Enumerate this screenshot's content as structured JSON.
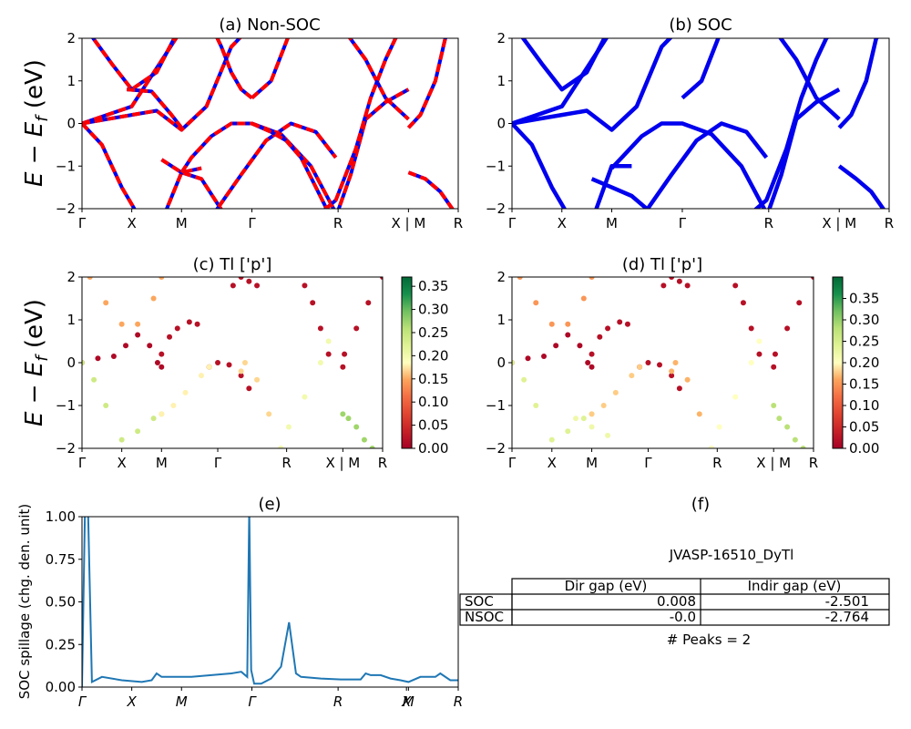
{
  "figure": {
    "suptitle": "JVASP-16510_DyTl",
    "colors": {
      "soc": "#0000ee",
      "nsoc_dash": "#ff0000",
      "spillage": "#1f77b4"
    }
  },
  "chart_data": [
    {
      "id": "a",
      "type": "line",
      "title": "(a) Non-SOC",
      "ylabel": "E − E_f (eV)",
      "ylim": [
        -2,
        2
      ],
      "yticks": [
        "2",
        "1",
        "0",
        "−1",
        "−2"
      ],
      "kpath": [
        "Γ",
        "X",
        "M",
        "Γ",
        "R",
        "X | M",
        "R"
      ],
      "kpos": [
        0,
        0.5,
        1,
        1.707,
        2.573,
        3.28,
        3.78
      ],
      "style": "blue-solid-with-red-dashes",
      "series": [
        {
          "x": [
            0,
            0.5,
            1
          ],
          "y": [
            0,
            0.4,
            2.2
          ]
        },
        {
          "x": [
            0,
            0.25,
            0.5,
            0.75,
            1.0,
            1.25,
            1.5,
            1.707
          ],
          "y": [
            0.0,
            0.1,
            0.2,
            0.3,
            -0.15,
            0.4,
            1.8,
            2.3
          ]
        },
        {
          "x": [
            0.05,
            0.3,
            0.5,
            0.75,
            0.97
          ],
          "y": [
            2.2,
            1.4,
            0.8,
            1.2,
            2.2
          ]
        },
        {
          "x": [
            0.45,
            0.7,
            0.9,
            1.0
          ],
          "y": [
            0.8,
            0.75,
            0.2,
            -0.1
          ]
        },
        {
          "x": [
            0,
            0.2,
            0.4,
            0.6,
            0.8,
            1.0,
            1.2
          ],
          "y": [
            0,
            -0.5,
            -1.5,
            -2.3,
            -2.3,
            -1.15,
            -1.05
          ]
        },
        {
          "x": [
            0.8,
            1.0,
            1.2,
            1.45
          ],
          "y": [
            -0.85,
            -1.15,
            -1.3,
            -2.2
          ]
        },
        {
          "x": [
            1.0,
            1.1,
            1.3,
            1.5,
            1.707,
            2.0,
            2.3,
            2.573
          ],
          "y": [
            -1.15,
            -0.8,
            -0.3,
            0.0,
            0.0,
            -0.25,
            -1.0,
            -2.2
          ]
        },
        {
          "x": [
            1.3,
            1.4,
            1.5,
            1.6,
            1.707
          ],
          "y": [
            2.3,
            1.8,
            1.2,
            0.8,
            0.6
          ]
        },
        {
          "x": [
            1.707,
            1.9,
            2.1,
            2.35,
            2.6,
            2.85,
            3.05,
            3.28
          ],
          "y": [
            0.6,
            1.0,
            2.2,
            2.3,
            2.3,
            1.5,
            0.6,
            0.1
          ]
        },
        {
          "x": [
            1.3,
            1.6,
            1.85,
            2.1,
            2.35,
            2.55
          ],
          "y": [
            -2.2,
            -1.2,
            -0.4,
            0.0,
            -0.2,
            -0.8
          ]
        },
        {
          "x": [
            1.707,
            1.9,
            2.05,
            2.2,
            2.35,
            2.5
          ],
          "y": [
            0.0,
            -0.2,
            -0.4,
            -0.8,
            -1.5,
            -2.2
          ]
        },
        {
          "x": [
            2.55,
            2.7,
            2.85,
            3.05,
            3.28
          ],
          "y": [
            -2.2,
            -1.2,
            0.1,
            0.5,
            0.8
          ]
        },
        {
          "x": [
            2.35,
            2.55,
            2.75,
            2.9,
            3.05,
            3.15,
            3.28
          ],
          "y": [
            -2.2,
            -1.8,
            -0.6,
            0.6,
            1.5,
            2.0,
            2.3
          ]
        },
        {
          "x": [
            3.28,
            3.4,
            3.55,
            3.65,
            3.78
          ],
          "y": [
            -0.1,
            0.2,
            1.0,
            2.0,
            2.3
          ]
        },
        {
          "x": [
            3.28,
            3.45,
            3.6,
            3.78
          ],
          "y": [
            -1.15,
            -1.3,
            -1.6,
            -2.2
          ]
        }
      ]
    },
    {
      "id": "b",
      "type": "line",
      "title": "(b) SOC",
      "ylim": [
        -2,
        2
      ],
      "yticks": [
        "2",
        "1",
        "0",
        "−1",
        "−2"
      ],
      "kpath": [
        "Γ",
        "X",
        "M",
        "Γ",
        "R",
        "X | M",
        "R"
      ],
      "kpos": [
        0,
        0.5,
        1,
        1.707,
        2.573,
        3.28,
        3.78
      ],
      "style": "blue-thick",
      "series": [
        {
          "x": [
            0,
            0.5,
            1
          ],
          "y": [
            0,
            0.4,
            2.2
          ]
        },
        {
          "x": [
            0,
            0.25,
            0.5,
            0.75,
            1.0,
            1.25,
            1.5,
            1.707
          ],
          "y": [
            0.0,
            0.1,
            0.2,
            0.3,
            -0.15,
            0.4,
            1.8,
            2.3
          ]
        },
        {
          "x": [
            0.05,
            0.3,
            0.5,
            0.75,
            0.97
          ],
          "y": [
            2.2,
            1.4,
            0.8,
            1.2,
            2.2
          ]
        },
        {
          "x": [
            0,
            0.2,
            0.4,
            0.6,
            0.8,
            1.0,
            1.2
          ],
          "y": [
            0,
            -0.5,
            -1.5,
            -2.3,
            -2.3,
            -1.0,
            -1.0
          ]
        },
        {
          "x": [
            0.8,
            1.0,
            1.2,
            1.45
          ],
          "y": [
            -1.3,
            -1.5,
            -1.7,
            -2.2
          ]
        },
        {
          "x": [
            1.0,
            1.1,
            1.3,
            1.5,
            1.707,
            2.0,
            2.3,
            2.573
          ],
          "y": [
            -1.05,
            -0.8,
            -0.3,
            0.0,
            0.0,
            -0.25,
            -1.0,
            -2.2
          ]
        },
        {
          "x": [
            1.707,
            1.9,
            2.1,
            2.35,
            2.6,
            2.85,
            3.05,
            3.28
          ],
          "y": [
            0.6,
            1.0,
            2.2,
            2.3,
            2.3,
            1.5,
            0.6,
            0.1
          ]
        },
        {
          "x": [
            1.3,
            1.6,
            1.85,
            2.1,
            2.35,
            2.55
          ],
          "y": [
            -2.2,
            -1.2,
            -0.4,
            0.0,
            -0.2,
            -0.8
          ]
        },
        {
          "x": [
            2.55,
            2.7,
            2.85,
            3.05,
            3.28
          ],
          "y": [
            -2.2,
            -1.2,
            0.1,
            0.5,
            0.8
          ]
        },
        {
          "x": [
            2.35,
            2.55,
            2.75,
            2.9,
            3.05,
            3.15,
            3.28
          ],
          "y": [
            -2.2,
            -1.8,
            -0.6,
            0.6,
            1.5,
            2.0,
            2.3
          ]
        },
        {
          "x": [
            3.28,
            3.4,
            3.55,
            3.65,
            3.78
          ],
          "y": [
            -0.1,
            0.2,
            1.0,
            2.0,
            2.3
          ]
        },
        {
          "x": [
            3.28,
            3.45,
            3.6,
            3.78
          ],
          "y": [
            -1.0,
            -1.3,
            -1.6,
            -2.2
          ]
        }
      ]
    },
    {
      "id": "c",
      "type": "scatter",
      "title": "(c)  Tl ['p']",
      "ylabel": "E − E_f (eV)",
      "ylim": [
        -2,
        2
      ],
      "yticks": [
        "2",
        "1",
        "0",
        "−1",
        "−2"
      ],
      "kpath": [
        "Γ",
        "X",
        "M",
        "Γ",
        "R",
        "X | M",
        "R"
      ],
      "kpos": [
        0,
        0.5,
        1,
        1.707,
        2.573,
        3.28,
        3.78
      ],
      "colorbar": {
        "min": 0.0,
        "max": 0.37,
        "ticks": [
          "0.35",
          "0.30",
          "0.25",
          "0.20",
          "0.15",
          "0.10",
          "0.05",
          "0.00"
        ],
        "tick_values": [
          0.35,
          0.3,
          0.25,
          0.2,
          0.15,
          0.1,
          0.05,
          0.0
        ]
      },
      "points": [
        {
          "x": [
            0.0,
            0.2,
            0.4,
            0.55,
            0.7,
            0.85,
            0.95,
            1.0
          ],
          "y": [
            0.0,
            0.1,
            0.15,
            0.4,
            0.65,
            0.4,
            0.0,
            -0.1
          ],
          "c": 0.01
        },
        {
          "x": [
            1.0,
            1.1,
            1.2,
            1.35,
            1.45
          ],
          "y": [
            0.2,
            0.6,
            0.8,
            0.95,
            0.9
          ],
          "c": 0.02
        },
        {
          "x": [
            1.6,
            1.707,
            1.85,
            2.0,
            2.1
          ],
          "y": [
            -0.1,
            0.0,
            -0.05,
            -0.3,
            -0.6
          ],
          "c": 0.02
        },
        {
          "x": [
            1.9,
            2.0,
            2.1,
            2.2
          ],
          "y": [
            1.8,
            2.0,
            1.9,
            1.8
          ],
          "c": 0.02
        },
        {
          "x": [
            2.8,
            2.9,
            3.0,
            3.1,
            3.28
          ],
          "y": [
            1.8,
            1.4,
            0.8,
            0.2,
            -0.1
          ],
          "c": 0.02
        },
        {
          "x": [
            2.0,
            2.05,
            2.2,
            2.35,
            2.5
          ],
          "y": [
            -0.2,
            0.0,
            -0.4,
            -1.2,
            -2.0
          ],
          "c": 0.17
        },
        {
          "x": [
            2.5,
            2.6,
            2.8,
            3.0,
            3.1
          ],
          "y": [
            -2.0,
            -1.5,
            -0.8,
            0.0,
            0.5
          ],
          "c": 0.2
        },
        {
          "x": [
            0.0,
            0.15,
            0.3,
            0.5,
            0.7,
            0.9,
            1.0
          ],
          "y": [
            0.0,
            -0.4,
            -1.0,
            -1.8,
            -1.6,
            -1.3,
            -1.2
          ],
          "c": 0.24
        },
        {
          "x": [
            1.0,
            1.15,
            1.3,
            1.5,
            1.6
          ],
          "y": [
            -1.2,
            -1.0,
            -0.7,
            -0.3,
            -0.1
          ],
          "c": 0.18
        },
        {
          "x": [
            3.28,
            3.35,
            3.45,
            3.55,
            3.65
          ],
          "y": [
            -1.2,
            -1.3,
            -1.5,
            -1.8,
            -2.0
          ],
          "c": 0.28
        },
        {
          "x": [
            0.1,
            0.3,
            0.5,
            0.7,
            0.9,
            1.0
          ],
          "y": [
            2.0,
            1.4,
            0.9,
            0.9,
            1.5,
            2.0
          ],
          "c": 0.15
        },
        {
          "x": [
            3.3,
            3.45,
            3.6,
            3.78
          ],
          "y": [
            0.2,
            0.8,
            1.4,
            2.0
          ],
          "c": 0.02
        }
      ]
    },
    {
      "id": "d",
      "type": "scatter",
      "title": "(d) Tl ['p']",
      "ylim": [
        -2,
        2
      ],
      "yticks": [
        "2",
        "1",
        "0",
        "−1",
        "−2"
      ],
      "kpath": [
        "Γ",
        "X",
        "M",
        "Γ",
        "R",
        "X | M",
        "R"
      ],
      "kpos": [
        0,
        0.5,
        1,
        1.707,
        2.573,
        3.28,
        3.78
      ],
      "colorbar": {
        "min": 0.0,
        "max": 0.4,
        "ticks": [
          "0.35",
          "0.30",
          "0.25",
          "0.20",
          "0.15",
          "0.10",
          "0.05",
          "0.00"
        ],
        "tick_values": [
          0.35,
          0.3,
          0.25,
          0.2,
          0.15,
          0.1,
          0.05,
          0.0
        ]
      },
      "points": [
        {
          "x": [
            0.0,
            0.2,
            0.4,
            0.55,
            0.7,
            0.85,
            0.95,
            1.0
          ],
          "y": [
            0.0,
            0.1,
            0.15,
            0.4,
            0.65,
            0.4,
            0.0,
            -0.1
          ],
          "c": 0.01
        },
        {
          "x": [
            1.0,
            1.1,
            1.2,
            1.35,
            1.45
          ],
          "y": [
            0.2,
            0.6,
            0.8,
            0.95,
            0.9
          ],
          "c": 0.02
        },
        {
          "x": [
            1.6,
            1.707,
            1.85,
            2.0,
            2.1
          ],
          "y": [
            -0.1,
            0.0,
            -0.05,
            -0.3,
            -0.6
          ],
          "c": 0.02
        },
        {
          "x": [
            1.9,
            2.0,
            2.1,
            2.2
          ],
          "y": [
            1.8,
            2.0,
            1.9,
            1.8
          ],
          "c": 0.02
        },
        {
          "x": [
            2.8,
            2.9,
            3.0,
            3.1,
            3.28
          ],
          "y": [
            1.8,
            1.4,
            0.8,
            0.2,
            -0.1
          ],
          "c": 0.02
        },
        {
          "x": [
            2.0,
            2.05,
            2.2,
            2.35,
            2.5
          ],
          "y": [
            -0.2,
            0.0,
            -0.4,
            -1.2,
            -2.0
          ],
          "c": 0.17
        },
        {
          "x": [
            2.5,
            2.6,
            2.8,
            3.0,
            3.1
          ],
          "y": [
            -2.0,
            -1.5,
            -0.8,
            0.0,
            0.5
          ],
          "c": 0.2
        },
        {
          "x": [
            0.0,
            0.15,
            0.3,
            0.5,
            0.7,
            0.9,
            1.0
          ],
          "y": [
            0.0,
            -0.4,
            -1.0,
            -1.8,
            -1.6,
            -1.3,
            -1.2
          ],
          "c": 0.24
        },
        {
          "x": [
            1.0,
            1.15,
            1.3,
            1.5,
            1.6
          ],
          "y": [
            -1.2,
            -1.0,
            -0.7,
            -0.3,
            -0.1
          ],
          "c": 0.18
        },
        {
          "x": [
            3.28,
            3.35,
            3.45,
            3.55,
            3.65
          ],
          "y": [
            -1.0,
            -1.3,
            -1.5,
            -1.8,
            -2.0
          ],
          "c": 0.28
        },
        {
          "x": [
            0.1,
            0.3,
            0.5,
            0.7,
            0.9,
            1.0
          ],
          "y": [
            2.0,
            1.4,
            0.9,
            0.9,
            1.5,
            2.0
          ],
          "c": 0.15
        },
        {
          "x": [
            3.3,
            3.45,
            3.6,
            3.78
          ],
          "y": [
            0.2,
            0.8,
            1.4,
            2.0
          ],
          "c": 0.02
        },
        {
          "x": [
            0.8,
            1.0,
            1.2,
            1.45
          ],
          "y": [
            -1.3,
            -1.5,
            -1.7,
            -2.2
          ],
          "c": 0.22
        }
      ]
    },
    {
      "id": "e",
      "type": "line",
      "title": "(e)",
      "ylabel": "SOC spillage (chg. den. unit)",
      "ylim": [
        0,
        1.0
      ],
      "yticks": [
        "1.00",
        "0.75",
        "0.50",
        "0.25",
        "0.00"
      ],
      "ytick_values": [
        1.0,
        0.75,
        0.5,
        0.25,
        0.0
      ],
      "kpath": [
        "Γ",
        "X",
        "M",
        "Γ",
        "R",
        "X",
        "M",
        "R"
      ],
      "kpos": [
        0,
        0.5,
        1,
        1.707,
        2.573,
        3.26,
        3.28,
        3.78
      ],
      "x": [
        0,
        0.03,
        0.06,
        0.1,
        0.2,
        0.4,
        0.6,
        0.7,
        0.75,
        0.8,
        0.9,
        1.0,
        1.1,
        1.3,
        1.5,
        1.6,
        1.66,
        1.68,
        1.7,
        1.73,
        1.8,
        1.9,
        2.0,
        2.08,
        2.15,
        2.2,
        2.4,
        2.6,
        2.8,
        2.85,
        2.9,
        3.0,
        3.1,
        3.2,
        3.28,
        3.4,
        3.55,
        3.6,
        3.7,
        3.78
      ],
      "y": [
        0.0,
        1.05,
        1.05,
        0.03,
        0.06,
        0.04,
        0.03,
        0.04,
        0.08,
        0.06,
        0.06,
        0.06,
        0.06,
        0.07,
        0.08,
        0.09,
        0.06,
        1.05,
        0.1,
        0.02,
        0.02,
        0.05,
        0.12,
        0.38,
        0.08,
        0.06,
        0.05,
        0.045,
        0.045,
        0.08,
        0.07,
        0.07,
        0.05,
        0.04,
        0.03,
        0.06,
        0.06,
        0.08,
        0.04,
        0.04
      ]
    }
  ],
  "panel_f": {
    "title": "(f)",
    "table_title": "JVASP-16510_DyTl",
    "headers": [
      "Dir gap (eV)",
      "Indir gap (eV)"
    ],
    "rows": [
      {
        "label": "SOC",
        "dir": "0.008",
        "indir": "-2.501"
      },
      {
        "label": "NSOC",
        "dir": "-0.0",
        "indir": "-2.764"
      }
    ],
    "peaks": "# Peaks = 2"
  }
}
